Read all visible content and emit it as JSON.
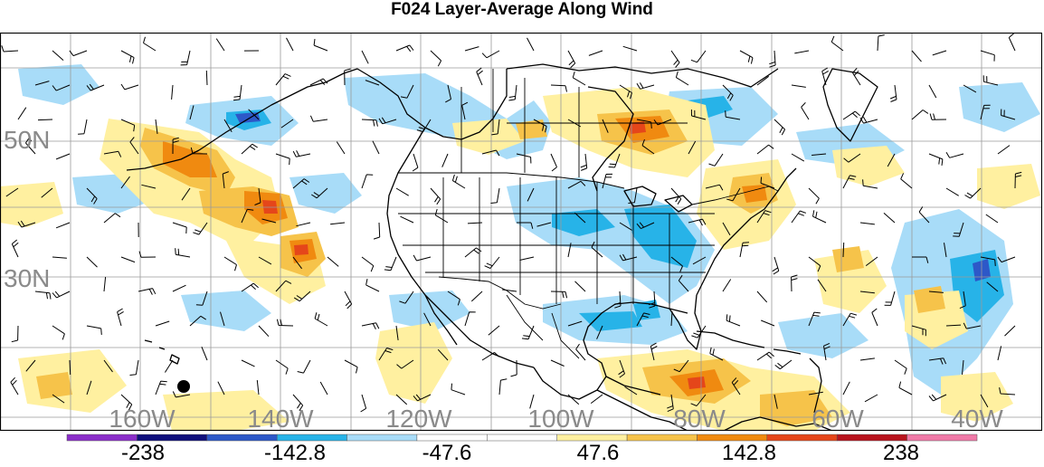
{
  "title": "F024 Layer-Average Along Wind",
  "latitude_labels": [
    "50N",
    "30N"
  ],
  "longitude_labels": [
    "160W",
    "140W",
    "120W",
    "100W",
    "80W",
    "60W",
    "40W"
  ],
  "colorbar": {
    "tick_labels": [
      "-238",
      "-142.8",
      "-47.6",
      "47.6",
      "142.8",
      "238"
    ],
    "colors": [
      "#8b2fc9",
      "#10107c",
      "#2d58c8",
      "#27b3e8",
      "#a8dcf8",
      "#ffffff",
      "#ffffff",
      "#fff0a0",
      "#f6c34a",
      "#f08a10",
      "#e5461a",
      "#b8141e",
      "#f07aa8"
    ]
  },
  "colors": {
    "grid": "#9a9a9a",
    "coast": "#000000",
    "label_gray": "#8a8a8a"
  }
}
